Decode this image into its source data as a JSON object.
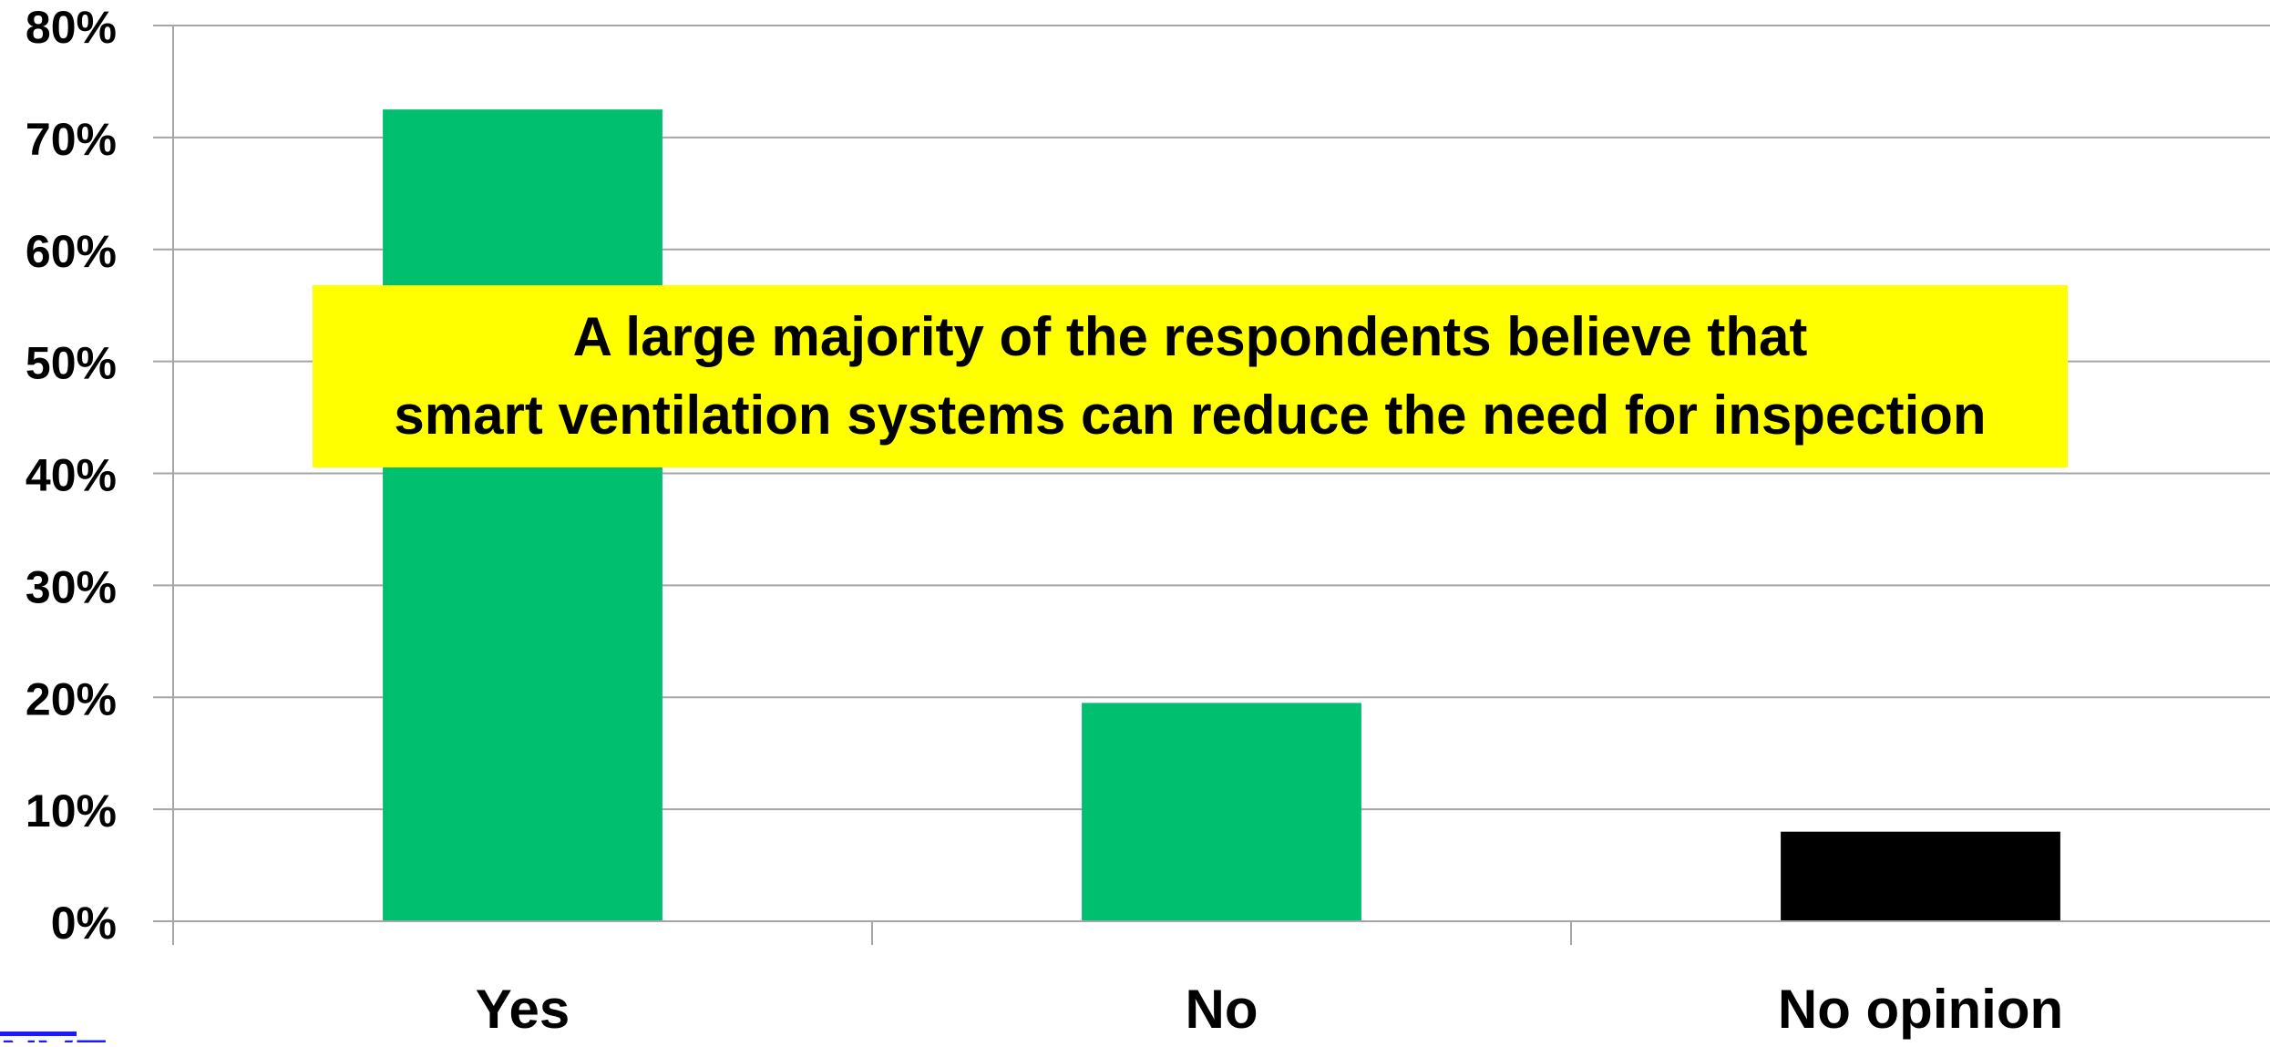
{
  "chart_data": {
    "type": "bar",
    "categories": [
      "Yes",
      "No",
      "No opinion"
    ],
    "values": [
      72.5,
      19.5,
      8
    ],
    "bar_colors": [
      "#00bf6f",
      "#00bf6f",
      "#000000"
    ],
    "ylim": [
      0,
      80
    ],
    "ytick_values": [
      0,
      10,
      20,
      30,
      40,
      50,
      60,
      70,
      80
    ],
    "ytick_labels": [
      "0%",
      "10%",
      "20%",
      "30%",
      "40%",
      "50%",
      "60%",
      "70%",
      "80%"
    ],
    "grid": true,
    "grid_color": "#a6a6a6",
    "title": "",
    "xlabel": "",
    "ylabel": ""
  },
  "annotation": {
    "lines": [
      "A large majority of the respondents believe that",
      "smart ventilation systems can reduce the need for inspection"
    ],
    "background": "#ffff00"
  },
  "logo": {
    "text": "NVE",
    "color": "#1a1aff"
  }
}
